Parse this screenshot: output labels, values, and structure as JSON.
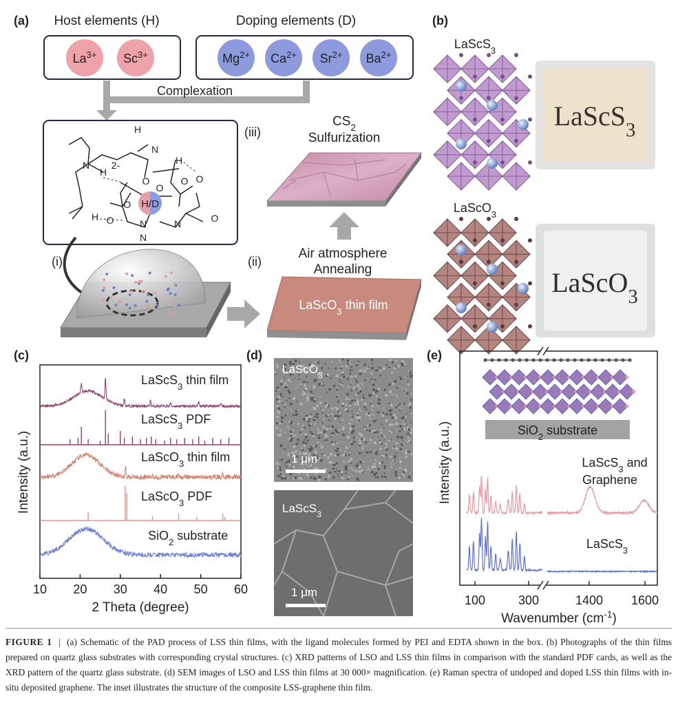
{
  "panel_labels": [
    "(a)",
    "(b)",
    "(c)",
    "(d)",
    "(e)"
  ],
  "a": {
    "host_title": "Host elements (H)",
    "doping_title": "Doping elements (D)",
    "host_ions": [
      {
        "base": "La",
        "sup": "3+"
      },
      {
        "base": "Sc",
        "sup": "3+"
      }
    ],
    "doping_ions": [
      {
        "base": "Mg",
        "sup": "2+"
      },
      {
        "base": "Ca",
        "sup": "2+"
      },
      {
        "base": "Sr",
        "sup": "2+"
      },
      {
        "base": "Ba",
        "sup": "2+"
      }
    ],
    "complexation": "Complexation",
    "molecule": {
      "center": "H/D",
      "atoms": [
        "H",
        "N",
        "H",
        "N",
        "H",
        "2-",
        "O",
        "O",
        "O",
        "N",
        "H",
        "O",
        "O",
        "O",
        "N",
        "N",
        "O"
      ]
    },
    "steps": [
      "(i)",
      "(ii)",
      "(iii)"
    ],
    "sulfurization": [
      {
        "base": "CS",
        "sub": "2"
      },
      {
        "base": "Sulfurization"
      }
    ],
    "annealing": [
      "Air atmosphere",
      "Annealing"
    ],
    "film_label": {
      "base": "LaScO",
      "sub": "3",
      "after": " thin film"
    }
  },
  "b": {
    "samples": [
      {
        "formula": {
          "base": "LaScS",
          "sub": "3"
        },
        "photo_text": {
          "base": "LaScS",
          "sub": "3"
        }
      },
      {
        "formula": {
          "base": "LaScO",
          "sub": "3"
        },
        "photo_text": {
          "base": "LaScO",
          "sub": "3"
        }
      }
    ]
  },
  "c": {
    "y_label": "Intensity (a.u.)",
    "x_label": "2 Theta (degree)",
    "x_ticks": [
      "10",
      "20",
      "30",
      "40",
      "50",
      "60"
    ],
    "traces": [
      {
        "base": "LaScS",
        "sub": "3",
        "after": " thin film"
      },
      {
        "base": "LaScS",
        "sub": "3",
        "after": " PDF"
      },
      {
        "base": "LaScO",
        "sub": "3",
        "after": " thin film"
      },
      {
        "base": "LaScO",
        "sub": "3",
        "after": " PDF"
      },
      {
        "base": "SiO",
        "sub": "2",
        "after": " substrate"
      }
    ]
  },
  "d": {
    "images": [
      {
        "label": {
          "base": "LaScO",
          "sub": "3"
        },
        "scale": "1 μm"
      },
      {
        "label": {
          "base": "LaScS",
          "sub": "3"
        },
        "scale": "1 μm"
      }
    ]
  },
  "e": {
    "y_label": "Intensity (a.u.)",
    "x_label": {
      "base": "Wavenumber (cm",
      "sup": "-1",
      "after": ")"
    },
    "x_ticks": [
      "100",
      "300",
      "1400",
      "1600"
    ],
    "inset_label": {
      "base": "SiO",
      "sub": "2",
      "after": " substrate"
    },
    "traces": [
      [
        {
          "base": "LaScS",
          "sub": "3",
          "after": " and"
        },
        {
          "base": "Graphene"
        }
      ],
      [
        {
          "base": "LaScS",
          "sub": "3"
        }
      ]
    ]
  },
  "caption": {
    "label": "FIGURE 1",
    "separator": "|",
    "text": "(a) Schematic of the PAD process of LSS thin films, with the ligand molecules formed by PEI and EDTA shown in the box. (b) Photographs of the thin films prepared on quartz glass substrates with corresponding crystal structures. (c) XRD patterns of LSO and LSS thin films in comparison with the standard PDF cards, as well as the XRD pattern of the quartz glass substrate. (d) SEM images of LSO and LSS thin films at 30 000× magnification. (e) Raman spectra of undoped and doped LSS thin films with in-situ deposited graphene. The inset illustrates the structure of the composite LSS-graphene thin film."
  }
}
